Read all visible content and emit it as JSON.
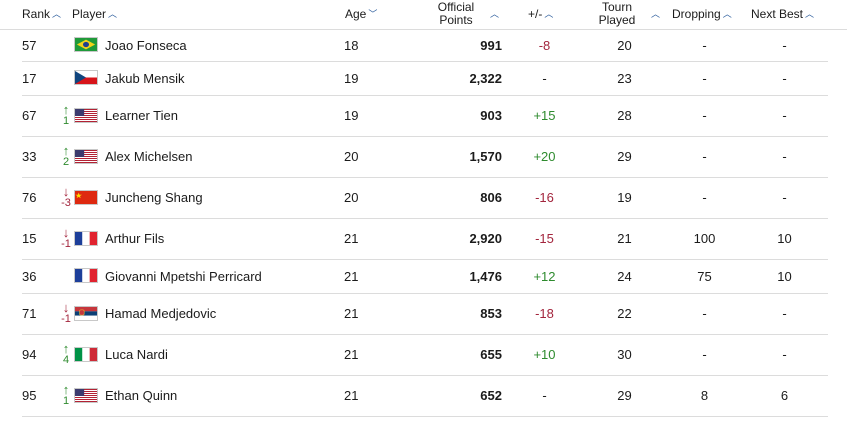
{
  "header": {
    "rank": "Rank",
    "player": "Player",
    "age": "Age",
    "points_line1": "Official",
    "points_line2": "Points",
    "change": "+/-",
    "tourn_line1": "Tourn",
    "tourn_line2": "Played",
    "dropping": "Dropping",
    "next_best": "Next Best"
  },
  "colors": {
    "up": "#2e8b2e",
    "down": "#a3253d",
    "accent": "#2b5c9c"
  },
  "rows": [
    {
      "rank": "57",
      "arrow": "",
      "move": "",
      "flag": "brazil",
      "name": "Joao Fonseca",
      "age": "18",
      "points": "991",
      "change": "-8",
      "tourn": "20",
      "dropping": "-",
      "next_best": "-"
    },
    {
      "rank": "17",
      "arrow": "",
      "move": "",
      "flag": "czech",
      "name": "Jakub Mensik",
      "age": "19",
      "points": "2,322",
      "change": "-",
      "tourn": "23",
      "dropping": "-",
      "next_best": "-"
    },
    {
      "rank": "67",
      "arrow": "↑",
      "move": "1",
      "flag": "usa",
      "name": "Learner Tien",
      "age": "19",
      "points": "903",
      "change": "+15",
      "tourn": "28",
      "dropping": "-",
      "next_best": "-"
    },
    {
      "rank": "33",
      "arrow": "↑",
      "move": "2",
      "flag": "usa",
      "name": "Alex Michelsen",
      "age": "20",
      "points": "1,570",
      "change": "+20",
      "tourn": "29",
      "dropping": "-",
      "next_best": "-"
    },
    {
      "rank": "76",
      "arrow": "↓",
      "move": "-3",
      "flag": "china",
      "name": "Juncheng Shang",
      "age": "20",
      "points": "806",
      "change": "-16",
      "tourn": "19",
      "dropping": "-",
      "next_best": "-"
    },
    {
      "rank": "15",
      "arrow": "↓",
      "move": "-1",
      "flag": "france",
      "name": "Arthur Fils",
      "age": "21",
      "points": "2,920",
      "change": "-15",
      "tourn": "21",
      "dropping": "100",
      "next_best": "10"
    },
    {
      "rank": "36",
      "arrow": "",
      "move": "",
      "flag": "france",
      "name": "Giovanni Mpetshi Perricard",
      "age": "21",
      "points": "1,476",
      "change": "+12",
      "tourn": "24",
      "dropping": "75",
      "next_best": "10"
    },
    {
      "rank": "71",
      "arrow": "↓",
      "move": "-1",
      "flag": "serbia",
      "name": "Hamad Medjedovic",
      "age": "21",
      "points": "853",
      "change": "-18",
      "tourn": "22",
      "dropping": "-",
      "next_best": "-"
    },
    {
      "rank": "94",
      "arrow": "↑",
      "move": "4",
      "flag": "italy",
      "name": "Luca Nardi",
      "age": "21",
      "points": "655",
      "change": "+10",
      "tourn": "30",
      "dropping": "-",
      "next_best": "-"
    },
    {
      "rank": "95",
      "arrow": "↑",
      "move": "1",
      "flag": "usa",
      "name": "Ethan Quinn",
      "age": "21",
      "points": "652",
      "change": "-",
      "tourn": "29",
      "dropping": "8",
      "next_best": "6"
    }
  ]
}
